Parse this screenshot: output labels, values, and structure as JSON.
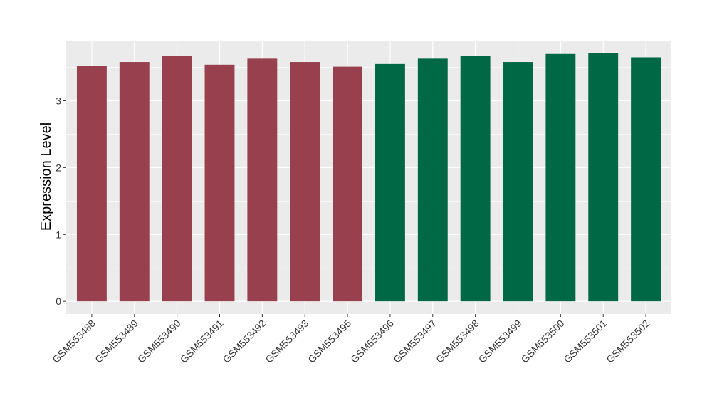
{
  "chart_data": {
    "type": "bar",
    "title": "",
    "xlabel": "",
    "ylabel": "Expression Level",
    "categories": [
      "GSM553488",
      "GSM553489",
      "GSM553490",
      "GSM553491",
      "GSM553492",
      "GSM553493",
      "GSM553495",
      "GSM553496",
      "GSM553497",
      "GSM553498",
      "GSM553499",
      "GSM553500",
      "GSM553501",
      "GSM553502"
    ],
    "values": [
      3.52,
      3.58,
      3.67,
      3.54,
      3.63,
      3.58,
      3.51,
      3.55,
      3.63,
      3.67,
      3.58,
      3.7,
      3.71,
      3.65
    ],
    "groups": [
      0,
      0,
      0,
      0,
      0,
      0,
      0,
      1,
      1,
      1,
      1,
      1,
      1,
      1
    ],
    "group_colors": [
      "#98404D",
      "#006844"
    ],
    "ylim": [
      -0.19,
      3.9
    ],
    "yticks": [
      0,
      1,
      2,
      3
    ],
    "grid": true,
    "panel_background": "#EBEBEB",
    "grid_color": "#FFFFFF",
    "legend": "none"
  }
}
